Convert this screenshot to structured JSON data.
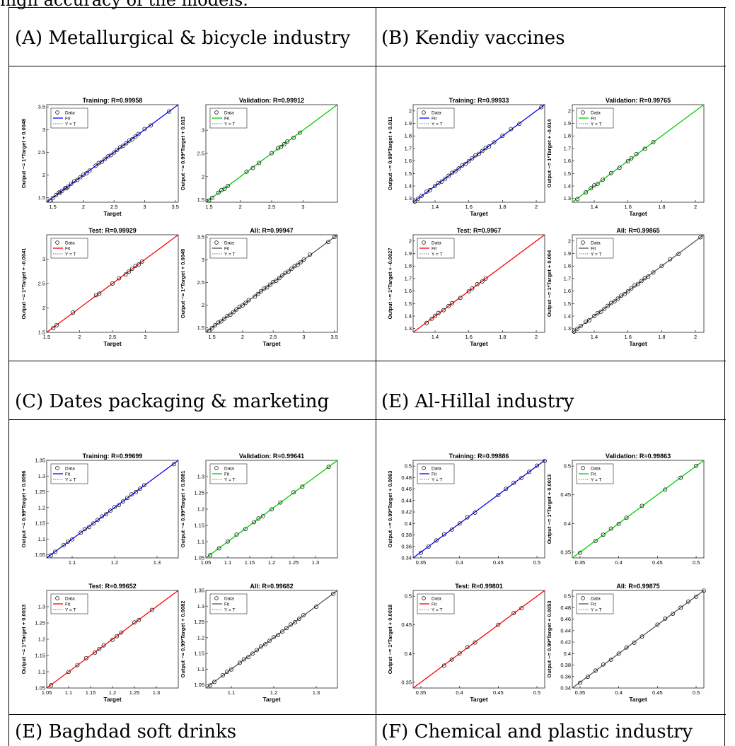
{
  "top_text": "high accuracy of the models.",
  "sections": [
    {
      "label": "(A) Metallurgical & bicycle industry"
    },
    {
      "label": "(B) Kendiy vaccines"
    },
    {
      "label": "(C) Dates packaging & marketing"
    },
    {
      "label": "(E) Al-Hillal industry"
    },
    {
      "label": "(E) Baghdad soft drinks"
    },
    {
      "label": "(F) Chemical and plastic industry"
    }
  ],
  "legend": {
    "data": "Data",
    "fit": "Fit",
    "yt": "Y = T"
  },
  "colors": {
    "training": "#0000ff",
    "validation": "#00cc00",
    "test": "#ff0000",
    "all": "#555555"
  },
  "chart_data": [
    {
      "type": "scatter",
      "panel": "A",
      "title": "Training: R=0.99958",
      "xlabel": "Target",
      "ylabel": "Output ~= 1*Target + 0.0048",
      "series": "training",
      "xlim": [
        1.4,
        3.55
      ],
      "ylim": [
        1.4,
        3.55
      ],
      "xticks": [
        1.5,
        2,
        2.5,
        3,
        3.5
      ],
      "xtick_labels": [
        "1.5",
        "2",
        "2.5",
        "3",
        "3.5"
      ],
      "yticks": [
        1.5,
        2,
        2.5,
        3,
        3.5
      ],
      "ytick_labels": [
        "1.5",
        "2",
        "2.5",
        "3",
        "3.5"
      ],
      "x": [
        1.45,
        1.5,
        1.55,
        1.6,
        1.62,
        1.65,
        1.7,
        1.72,
        1.75,
        1.8,
        1.85,
        1.9,
        1.95,
        2.0,
        2.05,
        2.1,
        2.2,
        2.25,
        2.3,
        2.35,
        2.4,
        2.45,
        2.5,
        2.55,
        2.6,
        2.65,
        2.7,
        2.75,
        2.8,
        2.85,
        2.9,
        3.0,
        3.1,
        3.4
      ]
    },
    {
      "type": "scatter",
      "panel": "A",
      "title": "Validation: R=0.99912",
      "xlabel": "",
      "ylabel": "Output ~= 0.99*Target + 0.013",
      "series": "validation",
      "xlim": [
        1.45,
        3.55
      ],
      "ylim": [
        1.45,
        3.55
      ],
      "xticks": [
        1.5,
        2,
        2.5,
        3
      ],
      "xtick_labels": [
        "1.5",
        "2",
        "2.5",
        "3"
      ],
      "yticks": [
        1.5,
        2,
        2.5,
        3
      ],
      "ytick_labels": [
        "1.5",
        "2",
        "2.5",
        "3"
      ],
      "x": [
        1.5,
        1.55,
        1.65,
        1.7,
        1.75,
        1.8,
        2.1,
        2.2,
        2.3,
        2.5,
        2.6,
        2.65,
        2.7,
        2.75,
        2.85,
        2.95
      ]
    },
    {
      "type": "scatter",
      "panel": "A",
      "title": "Test: R=0.99929",
      "xlabel": "Target",
      "ylabel": "Output ~= 1*Target + -0.0041",
      "series": "test",
      "xlim": [
        1.5,
        3.5
      ],
      "ylim": [
        1.5,
        3.5
      ],
      "xticks": [
        1.5,
        2,
        2.5,
        3
      ],
      "xtick_labels": [
        "1.5",
        "2",
        "2.5",
        "3"
      ],
      "yticks": [
        1.5,
        2,
        2.5,
        3
      ],
      "ytick_labels": [
        "1.5",
        "2",
        "2.5",
        "3"
      ],
      "x": [
        1.6,
        1.65,
        1.9,
        2.25,
        2.3,
        2.5,
        2.6,
        2.7,
        2.75,
        2.8,
        2.85,
        2.9,
        2.95
      ]
    },
    {
      "type": "scatter",
      "panel": "A",
      "title": "All: R=0.99947",
      "xlabel": "Target",
      "ylabel": "Output ~= 1*Target + 0.0049",
      "series": "all",
      "xlim": [
        1.4,
        3.55
      ],
      "ylim": [
        1.4,
        3.55
      ],
      "xticks": [
        1.5,
        2,
        2.5,
        3,
        3.5
      ],
      "xtick_labels": [
        "1.5",
        "2",
        "2.5",
        "3",
        "3.5"
      ],
      "yticks": [
        1.5,
        2,
        2.5,
        3,
        3.5
      ],
      "ytick_labels": [
        "1.5",
        "2",
        "2.5",
        "3",
        "3.5"
      ],
      "x": [
        1.45,
        1.5,
        1.55,
        1.6,
        1.65,
        1.7,
        1.75,
        1.8,
        1.85,
        1.9,
        1.95,
        2.0,
        2.05,
        2.1,
        2.2,
        2.25,
        2.3,
        2.35,
        2.4,
        2.45,
        2.5,
        2.55,
        2.6,
        2.65,
        2.7,
        2.75,
        2.8,
        2.85,
        2.9,
        2.95,
        3.0,
        3.1,
        3.4,
        3.5
      ]
    },
    {
      "type": "scatter",
      "panel": "B",
      "title": "Training: R=0.99933",
      "xlabel": "Target",
      "ylabel": "Output ~= 0.99*Target + 0.011",
      "series": "training",
      "xlim": [
        1.27,
        2.05
      ],
      "ylim": [
        1.27,
        2.05
      ],
      "xticks": [
        1.4,
        1.6,
        1.8,
        2
      ],
      "xtick_labels": [
        "1.4",
        "1.6",
        "1.8",
        "2"
      ],
      "yticks": [
        1.3,
        1.4,
        1.5,
        1.6,
        1.7,
        1.8,
        1.9,
        2
      ],
      "ytick_labels": [
        "1.3",
        "1.4",
        "1.5",
        "1.6",
        "1.7",
        "1.8",
        "1.9",
        "2"
      ],
      "x": [
        1.28,
        1.3,
        1.32,
        1.35,
        1.37,
        1.4,
        1.42,
        1.44,
        1.46,
        1.48,
        1.5,
        1.52,
        1.54,
        1.56,
        1.58,
        1.6,
        1.62,
        1.64,
        1.66,
        1.68,
        1.7,
        1.72,
        1.75,
        1.8,
        1.85,
        1.9,
        2.03
      ]
    },
    {
      "type": "scatter",
      "panel": "B",
      "title": "Validation: R=0.99765",
      "xlabel": "Target",
      "ylabel": "Output ~= 1*Target + -0.014",
      "series": "validation",
      "xlim": [
        1.27,
        2.05
      ],
      "ylim": [
        1.27,
        2.05
      ],
      "xticks": [
        1.4,
        1.6,
        1.8,
        2
      ],
      "xtick_labels": [
        "1.4",
        "1.6",
        "1.8",
        "2"
      ],
      "yticks": [
        1.3,
        1.4,
        1.5,
        1.6,
        1.7,
        1.8,
        1.9,
        2
      ],
      "ytick_labels": [
        "1.3",
        "1.4",
        "1.5",
        "1.6",
        "1.7",
        "1.8",
        "1.9",
        "2"
      ],
      "x": [
        1.3,
        1.35,
        1.38,
        1.4,
        1.42,
        1.45,
        1.5,
        1.55,
        1.6,
        1.62,
        1.65,
        1.7,
        1.75
      ]
    },
    {
      "type": "scatter",
      "panel": "B",
      "title": "Test: R=0.9967",
      "xlabel": "Target",
      "ylabel": "Output ~= 1*Target + -0.0027",
      "series": "test",
      "xlim": [
        1.27,
        2.05
      ],
      "ylim": [
        1.27,
        2.05
      ],
      "xticks": [
        1.4,
        1.6,
        1.8,
        2
      ],
      "xtick_labels": [
        "1.4",
        "1.6",
        "1.8",
        "2"
      ],
      "yticks": [
        1.3,
        1.4,
        1.5,
        1.6,
        1.7,
        1.8,
        1.9,
        2
      ],
      "ytick_labels": [
        "1.3",
        "1.4",
        "1.5",
        "1.6",
        "1.7",
        "1.8",
        "1.9",
        "2"
      ],
      "x": [
        1.35,
        1.38,
        1.4,
        1.42,
        1.45,
        1.48,
        1.5,
        1.55,
        1.6,
        1.62,
        1.65,
        1.68,
        1.7
      ]
    },
    {
      "type": "scatter",
      "panel": "B",
      "title": "All: R=0.99865",
      "xlabel": "Target",
      "ylabel": "Output ~= 1*Target + 0.004",
      "series": "all",
      "xlim": [
        1.27,
        2.05
      ],
      "ylim": [
        1.27,
        2.05
      ],
      "xticks": [
        1.4,
        1.6,
        1.8,
        2
      ],
      "xtick_labels": [
        "1.4",
        "1.6",
        "1.8",
        "2"
      ],
      "yticks": [
        1.3,
        1.4,
        1.5,
        1.6,
        1.7,
        1.8,
        1.9,
        2
      ],
      "ytick_labels": [
        "1.3",
        "1.4",
        "1.5",
        "1.6",
        "1.7",
        "1.8",
        "1.9",
        "2"
      ],
      "x": [
        1.28,
        1.3,
        1.32,
        1.35,
        1.37,
        1.4,
        1.42,
        1.44,
        1.46,
        1.48,
        1.5,
        1.52,
        1.54,
        1.56,
        1.58,
        1.6,
        1.62,
        1.64,
        1.66,
        1.68,
        1.7,
        1.72,
        1.75,
        1.8,
        1.85,
        1.9,
        2.03
      ]
    },
    {
      "type": "scatter",
      "panel": "C",
      "title": "Training: R=0.99699",
      "xlabel": "",
      "ylabel": "Output ~= 0.99*Target + 0.0096",
      "series": "training",
      "xlim": [
        1.04,
        1.35
      ],
      "ylim": [
        1.04,
        1.35
      ],
      "xticks": [
        1.1,
        1.2,
        1.3
      ],
      "xtick_labels": [
        "1.1",
        "1.2",
        "1.3"
      ],
      "yticks": [
        1.05,
        1.1,
        1.15,
        1.2,
        1.25,
        1.3,
        1.35
      ],
      "ytick_labels": [
        "1.05",
        "1.1",
        "1.15",
        "1.2",
        "1.25",
        "1.3",
        "1.35"
      ],
      "x": [
        1.05,
        1.06,
        1.08,
        1.09,
        1.1,
        1.12,
        1.13,
        1.14,
        1.15,
        1.16,
        1.17,
        1.18,
        1.19,
        1.2,
        1.21,
        1.22,
        1.23,
        1.24,
        1.25,
        1.26,
        1.27,
        1.34
      ]
    },
    {
      "type": "scatter",
      "panel": "C",
      "title": "Validation: R=0.99641",
      "xlabel": "",
      "ylabel": "Output ~= 0.99*Target + 0.0081",
      "series": "validation",
      "xlim": [
        1.05,
        1.35
      ],
      "ylim": [
        1.05,
        1.35
      ],
      "xticks": [
        1.05,
        1.1,
        1.15,
        1.2,
        1.25,
        1.3
      ],
      "xtick_labels": [
        "1.05",
        "1.1",
        "1.15",
        "1.2",
        "1.25",
        "1.3"
      ],
      "yticks": [
        1.05,
        1.1,
        1.15,
        1.2,
        1.25,
        1.3
      ],
      "ytick_labels": [
        "1.05",
        "1.1",
        "1.15",
        "1.2",
        "1.25",
        "1.3"
      ],
      "x": [
        1.06,
        1.08,
        1.1,
        1.12,
        1.14,
        1.16,
        1.17,
        1.18,
        1.2,
        1.22,
        1.25,
        1.27,
        1.33
      ]
    },
    {
      "type": "scatter",
      "panel": "C",
      "title": "Test: R=0.99652",
      "xlabel": "Target",
      "ylabel": "Output ~= 1*Target + 0.0013",
      "series": "test",
      "xlim": [
        1.05,
        1.35
      ],
      "ylim": [
        1.05,
        1.35
      ],
      "xticks": [
        1.05,
        1.1,
        1.15,
        1.2,
        1.25,
        1.3
      ],
      "xtick_labels": [
        "1.05",
        "1.1",
        "1.15",
        "1.2",
        "1.25",
        "1.3"
      ],
      "yticks": [
        1.05,
        1.1,
        1.15,
        1.2,
        1.25,
        1.3
      ],
      "ytick_labels": [
        "1.05",
        "1.1",
        "1.15",
        "1.2",
        "1.25",
        "1.3"
      ],
      "x": [
        1.06,
        1.1,
        1.12,
        1.14,
        1.16,
        1.17,
        1.18,
        1.2,
        1.21,
        1.22,
        1.25,
        1.26,
        1.29
      ]
    },
    {
      "type": "scatter",
      "panel": "C",
      "title": "All: R=0.99682",
      "xlabel": "Target",
      "ylabel": "Output ~= 0.99*Target + 0.0082",
      "series": "all",
      "xlim": [
        1.04,
        1.35
      ],
      "ylim": [
        1.04,
        1.35
      ],
      "xticks": [
        1.1,
        1.2,
        1.3
      ],
      "xtick_labels": [
        "1.1",
        "1.2",
        "1.3"
      ],
      "yticks": [
        1.05,
        1.1,
        1.15,
        1.2,
        1.25,
        1.3,
        1.35
      ],
      "ytick_labels": [
        "1.05",
        "1.1",
        "1.15",
        "1.2",
        "1.25",
        "1.3",
        "1.35"
      ],
      "x": [
        1.05,
        1.06,
        1.08,
        1.09,
        1.1,
        1.12,
        1.13,
        1.14,
        1.15,
        1.16,
        1.17,
        1.18,
        1.19,
        1.2,
        1.21,
        1.22,
        1.23,
        1.24,
        1.25,
        1.26,
        1.27,
        1.3,
        1.34
      ]
    },
    {
      "type": "scatter",
      "panel": "E-Al-Hillal",
      "title": "Training: R=0.99886",
      "xlabel": "",
      "ylabel": "Output ~= 0.99*Target + 0.0063",
      "series": "training",
      "xlim": [
        0.34,
        0.51
      ],
      "ylim": [
        0.34,
        0.51
      ],
      "xticks": [
        0.35,
        0.4,
        0.45,
        0.5
      ],
      "xtick_labels": [
        "0.35",
        "0.4",
        "0.45",
        "0.5"
      ],
      "yticks": [
        0.34,
        0.36,
        0.38,
        0.4,
        0.42,
        0.44,
        0.46,
        0.48,
        0.5
      ],
      "ytick_labels": [
        "0.34",
        "0.36",
        "0.38",
        "0.4",
        "0.42",
        "0.44",
        "0.46",
        "0.48",
        "0.5"
      ],
      "x": [
        0.35,
        0.36,
        0.37,
        0.38,
        0.39,
        0.4,
        0.41,
        0.42,
        0.45,
        0.46,
        0.47,
        0.48,
        0.49,
        0.5,
        0.51
      ]
    },
    {
      "type": "scatter",
      "panel": "E-Al-Hillal",
      "title": "Validation: R=0.99863",
      "xlabel": "",
      "ylabel": "Output ~= 1*Target + 0.0013",
      "series": "validation",
      "xlim": [
        0.34,
        0.51
      ],
      "ylim": [
        0.34,
        0.51
      ],
      "xticks": [
        0.35,
        0.4,
        0.45,
        0.5
      ],
      "xtick_labels": [
        "0.35",
        "0.4",
        "0.45",
        "0.5"
      ],
      "yticks": [
        0.35,
        0.4,
        0.45,
        0.5
      ],
      "ytick_labels": [
        "0.35",
        "0.4",
        "0.45",
        "0.5"
      ],
      "x": [
        0.35,
        0.37,
        0.38,
        0.39,
        0.4,
        0.41,
        0.43,
        0.46,
        0.48,
        0.5
      ]
    },
    {
      "type": "scatter",
      "panel": "E-Al-Hillal",
      "title": "Test: R=0.99801",
      "xlabel": "Target",
      "ylabel": "Output ~= 1*Target + 0.0018",
      "series": "test",
      "xlim": [
        0.34,
        0.51
      ],
      "ylim": [
        0.34,
        0.51
      ],
      "xticks": [
        0.35,
        0.4,
        0.45,
        0.5
      ],
      "xtick_labels": [
        "0.35",
        "0.4",
        "0.45",
        "0.5"
      ],
      "yticks": [
        0.35,
        0.4,
        0.45,
        0.5
      ],
      "ytick_labels": [
        "0.35",
        "0.4",
        "0.45",
        "0.5"
      ],
      "x": [
        0.38,
        0.39,
        0.4,
        0.41,
        0.42,
        0.45,
        0.47,
        0.48
      ]
    },
    {
      "type": "scatter",
      "panel": "E-Al-Hillal",
      "title": "All: R=0.99875",
      "xlabel": "Target",
      "ylabel": "Output ~= 0.99*Target + 0.0053",
      "series": "all",
      "xlim": [
        0.34,
        0.51
      ],
      "ylim": [
        0.34,
        0.51
      ],
      "xticks": [
        0.35,
        0.4,
        0.45,
        0.5
      ],
      "xtick_labels": [
        "0.35",
        "0.4",
        "0.45",
        "0.5"
      ],
      "yticks": [
        0.34,
        0.36,
        0.38,
        0.4,
        0.42,
        0.44,
        0.46,
        0.48,
        0.5
      ],
      "ytick_labels": [
        "0.34",
        "0.36",
        "0.38",
        "0.4",
        "0.42",
        "0.44",
        "0.46",
        "0.48",
        "0.5"
      ],
      "x": [
        0.35,
        0.36,
        0.37,
        0.38,
        0.39,
        0.4,
        0.41,
        0.42,
        0.43,
        0.45,
        0.46,
        0.47,
        0.48,
        0.49,
        0.5,
        0.51
      ]
    }
  ]
}
